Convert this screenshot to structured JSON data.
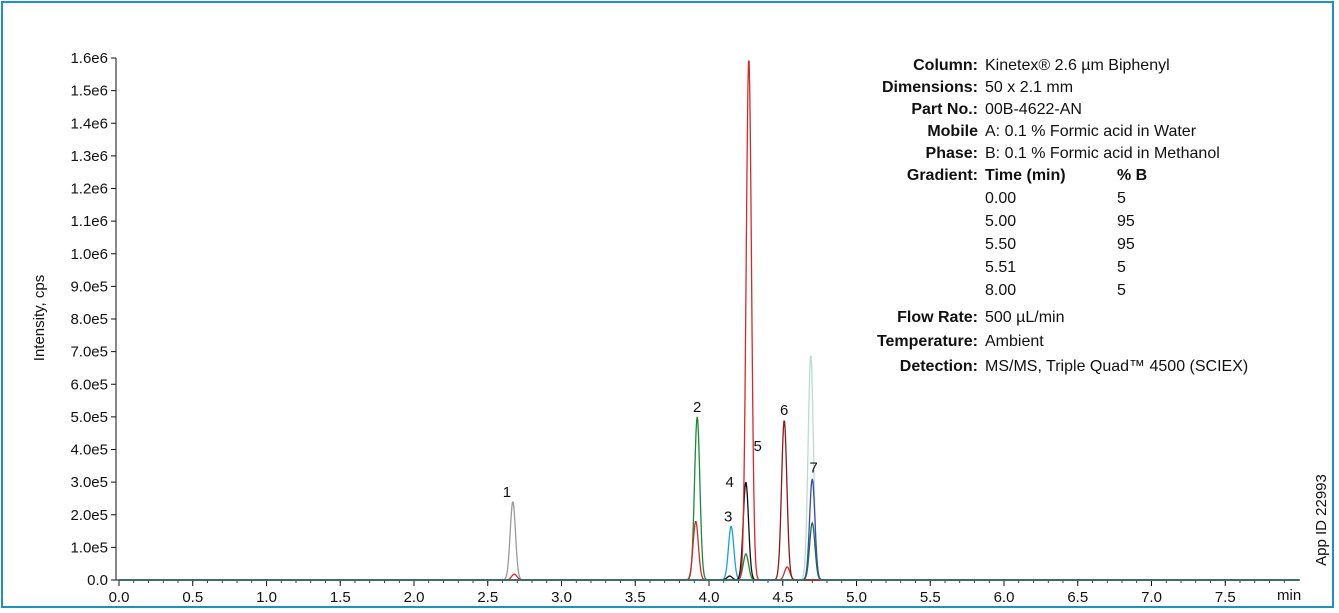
{
  "chart_data": {
    "type": "line",
    "xlabel": "min",
    "ylabel": "Intensity, cps",
    "xlim": [
      0,
      8
    ],
    "ylim": [
      0,
      1600000
    ],
    "x_ticks": [
      "0.0",
      "0.5",
      "1.0",
      "1.5",
      "2.0",
      "2.5",
      "3.0",
      "3.5",
      "4.0",
      "4.5",
      "5.0",
      "5.5",
      "6.0",
      "6.5",
      "7.0",
      "7.5"
    ],
    "y_ticks": [
      "0.0",
      "1.0e5",
      "2.0e5",
      "3.0e5",
      "4.0e5",
      "5.0e5",
      "6.0e5",
      "7.0e5",
      "8.0e5",
      "9.0e5",
      "1.0e6",
      "1.1e6",
      "1.2e6",
      "1.3e6",
      "1.4e6",
      "1.5e6",
      "1.6e6"
    ],
    "grid": false,
    "series": [
      {
        "color": "#9a9a9a",
        "peaks": [
          {
            "rt": 2.67,
            "height": 240000
          }
        ]
      },
      {
        "color": "#1a8a3c",
        "peaks": [
          {
            "rt": 3.92,
            "height": 500000
          },
          {
            "rt": 4.25,
            "height": 80000
          }
        ]
      },
      {
        "color": "#1aa0d6",
        "peaks": [
          {
            "rt": 4.15,
            "height": 165000
          }
        ]
      },
      {
        "color": "#111111",
        "peaks": [
          {
            "rt": 4.25,
            "height": 300000
          },
          {
            "rt": 4.14,
            "height": 12000
          }
        ]
      },
      {
        "color": "#d42a2a",
        "peaks": [
          {
            "rt": 4.27,
            "height": 1600000
          },
          {
            "rt": 3.91,
            "height": 180000
          },
          {
            "rt": 2.68,
            "height": 18000
          },
          {
            "rt": 4.53,
            "height": 40000
          }
        ]
      },
      {
        "color": "#8b1a1a",
        "peaks": [
          {
            "rt": 4.51,
            "height": 490000
          }
        ]
      },
      {
        "color": "#b8dcd2",
        "peaks": [
          {
            "rt": 4.69,
            "height": 690000
          }
        ]
      },
      {
        "color": "#3a4aa8",
        "peaks": [
          {
            "rt": 4.7,
            "height": 310000
          }
        ]
      },
      {
        "color": "#1d6b5a",
        "peaks": [
          {
            "rt": 4.7,
            "height": 175000
          }
        ]
      }
    ],
    "peak_labels": [
      {
        "text": "1",
        "rt": 2.63,
        "y": 255000
      },
      {
        "text": "2",
        "rt": 3.92,
        "y": 515000
      },
      {
        "text": "3",
        "rt": 4.13,
        "y": 180000
      },
      {
        "text": "4",
        "rt": 4.14,
        "y": 285000
      },
      {
        "text": "5",
        "rt": 4.33,
        "y": 395000
      },
      {
        "text": "6",
        "rt": 4.51,
        "y": 505000
      },
      {
        "text": "7",
        "rt": 4.71,
        "y": 330000
      }
    ]
  },
  "conditions": {
    "column": {
      "key": "Column:",
      "value": "Kinetex® 2.6 µm Biphenyl"
    },
    "dimensions": {
      "key": "Dimensions:",
      "value": "50 x 2.1 mm"
    },
    "part_no": {
      "key": "Part No.:",
      "value": "00B-4622-AN"
    },
    "mobile": {
      "key": "Mobile",
      "value": "A: 0.1 % Formic acid in Water"
    },
    "phase": {
      "key": "Phase:",
      "value": "B: 0.1 % Formic acid in Methanol"
    },
    "gradient": {
      "key": "Gradient:",
      "col_time": "Time (min)",
      "col_b": "% B",
      "rows": [
        {
          "time": "0.00",
          "b": "5"
        },
        {
          "time": "5.00",
          "b": "95"
        },
        {
          "time": "5.50",
          "b": "95"
        },
        {
          "time": "5.51",
          "b": "5"
        },
        {
          "time": "8.00",
          "b": "5"
        }
      ]
    },
    "flow_rate": {
      "key": "Flow Rate:",
      "value": "500 µL/min"
    },
    "temperature": {
      "key": "Temperature:",
      "value": "Ambient"
    },
    "detection": {
      "key": "Detection:",
      "value": "MS/MS, Triple Quad™ 4500 (SCIEX)"
    }
  },
  "app_id": "App ID 22993"
}
